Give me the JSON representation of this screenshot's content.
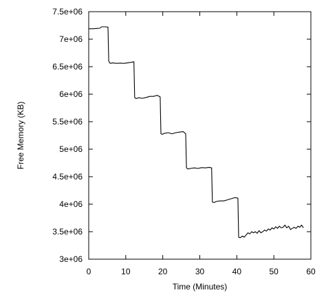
{
  "chart_data": {
    "type": "line",
    "title": "",
    "xlabel": "Time (Minutes)",
    "ylabel": "Free Memory (KB)",
    "xlim": [
      0,
      60
    ],
    "ylim": [
      3000000,
      7500000
    ],
    "x_ticks": [
      0,
      10,
      20,
      30,
      40,
      50,
      60
    ],
    "x_tick_labels": [
      "0",
      "10",
      "20",
      "30",
      "40",
      "50",
      "60"
    ],
    "y_ticks": [
      3000000,
      3500000,
      4000000,
      4500000,
      5000000,
      5500000,
      6000000,
      6500000,
      7000000,
      7500000
    ],
    "y_tick_labels": [
      "3e+06",
      "3.5e+06",
      "4e+06",
      "4.5e+06",
      "5e+06",
      "5.5e+06",
      "6e+06",
      "6.5e+06",
      "7e+06",
      "7.5e+06"
    ],
    "grid": false,
    "legend": "none",
    "series": [
      {
        "color": "#000000",
        "x": [
          0,
          1,
          2,
          3,
          3.5,
          4.5,
          5.2,
          5.4,
          5.8,
          6.5,
          7.5,
          8.5,
          9.5,
          10.5,
          11.5,
          12.2,
          12.4,
          12.8,
          13.5,
          14.5,
          15.5,
          16.5,
          17.5,
          18.5,
          19.3,
          19.5,
          19.9,
          20.5,
          21.5,
          22.5,
          23.5,
          24.5,
          25.5,
          26.2,
          26.4,
          26.8,
          27.5,
          28.5,
          29.5,
          30.5,
          31.5,
          32.5,
          33.2,
          33.4,
          33.8,
          34.5,
          35.5,
          36.5,
          37.5,
          38.5,
          39.5,
          40.3,
          40.5,
          40.9,
          41.5,
          42,
          42.5,
          43,
          43.5,
          44,
          44.5,
          45,
          45.5,
          46,
          46.5,
          47,
          47.5,
          48,
          48.5,
          49,
          49.5,
          50,
          50.5,
          51,
          51.5,
          52,
          52.5,
          53,
          53.5,
          54,
          54.5,
          55,
          55.5,
          56,
          56.5,
          57,
          57.5,
          58
        ],
        "y": [
          7190000,
          7190000,
          7195000,
          7200000,
          7225000,
          7225000,
          7220000,
          6600000,
          6560000,
          6570000,
          6560000,
          6565000,
          6560000,
          6570000,
          6580000,
          6590000,
          5940000,
          5920000,
          5935000,
          5925000,
          5940000,
          5960000,
          5960000,
          5980000,
          5950000,
          5280000,
          5270000,
          5290000,
          5300000,
          5280000,
          5300000,
          5310000,
          5320000,
          5280000,
          4660000,
          4640000,
          4650000,
          4660000,
          4650000,
          4665000,
          4660000,
          4670000,
          4660000,
          4040000,
          4030000,
          4050000,
          4060000,
          4060000,
          4080000,
          4100000,
          4120000,
          4110000,
          3400000,
          3390000,
          3420000,
          3400000,
          3440000,
          3480000,
          3460000,
          3500000,
          3480000,
          3500000,
          3470000,
          3520000,
          3480000,
          3500000,
          3530000,
          3510000,
          3550000,
          3530000,
          3570000,
          3550000,
          3590000,
          3560000,
          3600000,
          3570000,
          3580000,
          3620000,
          3570000,
          3600000,
          3540000,
          3560000,
          3580000,
          3560000,
          3600000,
          3580000,
          3620000,
          3570000
        ]
      }
    ]
  }
}
